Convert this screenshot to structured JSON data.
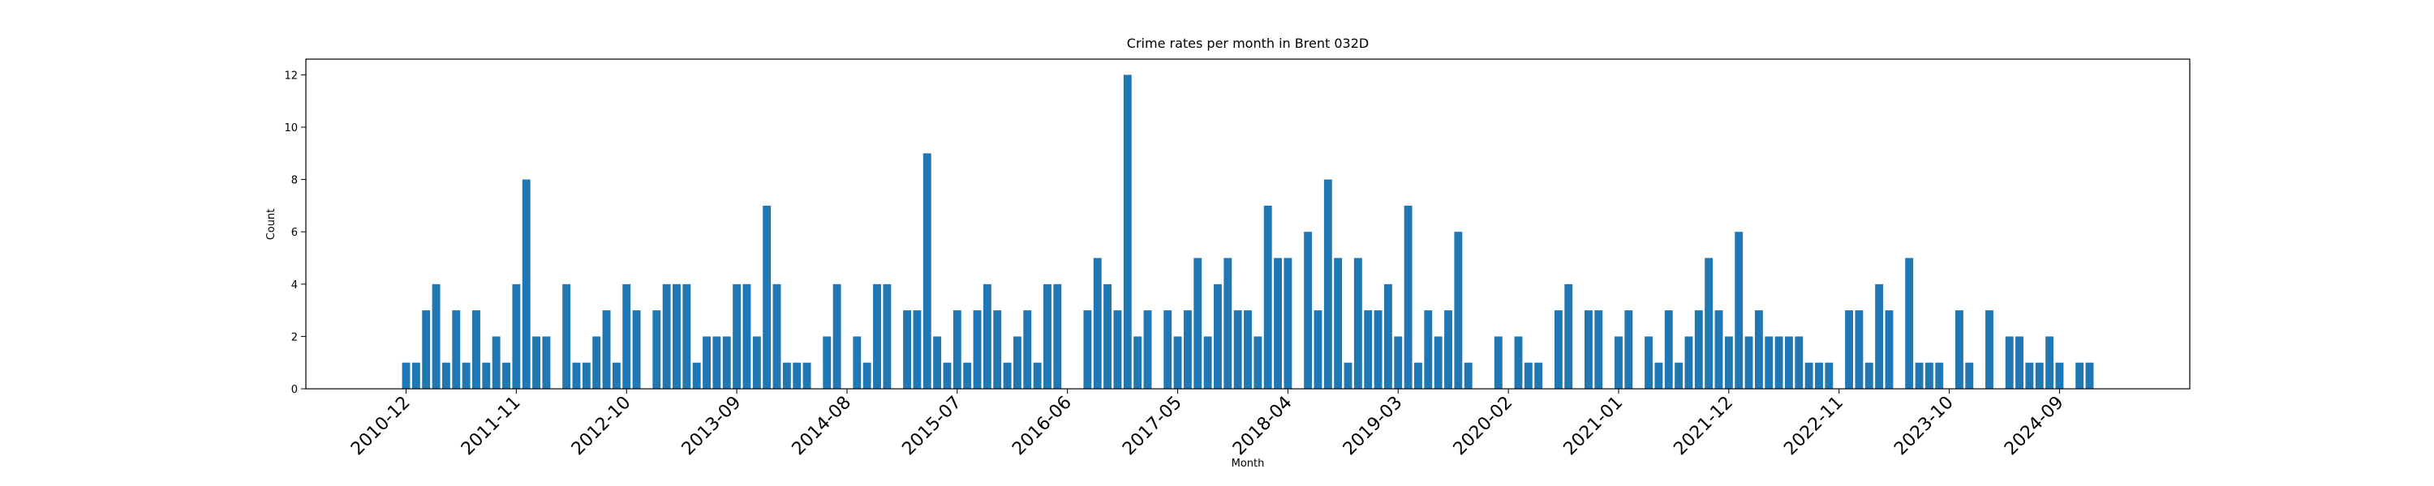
{
  "chart_data": {
    "type": "bar",
    "title": "Crime rates per month in Brent 032D",
    "x_label": "Month",
    "y_label": "Count",
    "categories": [
      "2010-12",
      null,
      null,
      null,
      null,
      null,
      null,
      null,
      null,
      null,
      null,
      "2011-11",
      null,
      null,
      null,
      null,
      null,
      null,
      null,
      null,
      null,
      null,
      "2012-10",
      null,
      null,
      null,
      null,
      null,
      null,
      null,
      null,
      null,
      null,
      "2013-09",
      null,
      null,
      null,
      null,
      null,
      null,
      null,
      null,
      null,
      null,
      "2014-08",
      null,
      null,
      null,
      null,
      null,
      null,
      null,
      null,
      null,
      null,
      "2015-07",
      null,
      null,
      null,
      null,
      null,
      null,
      null,
      null,
      null,
      null,
      "2016-06",
      null,
      null,
      null,
      null,
      null,
      null,
      null,
      null,
      null,
      null,
      "2017-05",
      null,
      null,
      null,
      null,
      null,
      null,
      null,
      null,
      null,
      null,
      "2018-04",
      null,
      null,
      null,
      null,
      null,
      null,
      null,
      null,
      null,
      null,
      "2019-03",
      null,
      null,
      null,
      null,
      null,
      null,
      null,
      null,
      null,
      null,
      "2020-02",
      null,
      null,
      null,
      null,
      null,
      null,
      null,
      null,
      null,
      null,
      "2021-01",
      null,
      null,
      null,
      null,
      null,
      null,
      null,
      null,
      null,
      null,
      "2021-12",
      null,
      null,
      null,
      null,
      null,
      null,
      null,
      null,
      null,
      null,
      "2022-11",
      null,
      null,
      null,
      null,
      null,
      null,
      null,
      null,
      null,
      null,
      "2023-10",
      null,
      null,
      null,
      null,
      null,
      null,
      null,
      null,
      null,
      null,
      "2024-09",
      null,
      null,
      null
    ],
    "values": [
      1,
      1,
      3,
      4,
      1,
      3,
      1,
      3,
      1,
      2,
      1,
      4,
      8,
      2,
      2,
      0,
      4,
      1,
      1,
      2,
      3,
      1,
      4,
      3,
      0,
      3,
      4,
      4,
      4,
      1,
      2,
      2,
      2,
      4,
      4,
      2,
      7,
      4,
      1,
      1,
      1,
      0,
      2,
      4,
      0,
      2,
      1,
      4,
      4,
      0,
      3,
      3,
      9,
      2,
      1,
      3,
      1,
      3,
      4,
      3,
      1,
      2,
      3,
      1,
      4,
      4,
      0,
      0,
      3,
      5,
      4,
      3,
      12,
      2,
      3,
      0,
      3,
      2,
      3,
      5,
      2,
      4,
      5,
      3,
      3,
      2,
      7,
      5,
      5,
      0,
      6,
      3,
      8,
      5,
      1,
      5,
      3,
      3,
      4,
      2,
      7,
      1,
      3,
      2,
      3,
      6,
      1,
      0,
      0,
      2,
      0,
      2,
      1,
      1,
      0,
      3,
      4,
      0,
      3,
      3,
      0,
      2,
      3,
      0,
      2,
      1,
      3,
      1,
      2,
      3,
      5,
      3,
      2,
      6,
      2,
      3,
      2,
      2,
      2,
      2,
      1,
      1,
      1,
      0,
      3,
      3,
      1,
      4,
      3,
      0,
      5,
      1,
      1,
      1,
      0,
      3,
      1,
      0,
      3,
      0,
      2,
      2,
      1,
      1,
      2,
      1,
      0,
      1,
      1
    ],
    "color": "#1f77b4",
    "ylim": [
      0,
      12.6
    ],
    "yticks": [
      0,
      2,
      4,
      6,
      8,
      10,
      12
    ],
    "grid": false
  }
}
